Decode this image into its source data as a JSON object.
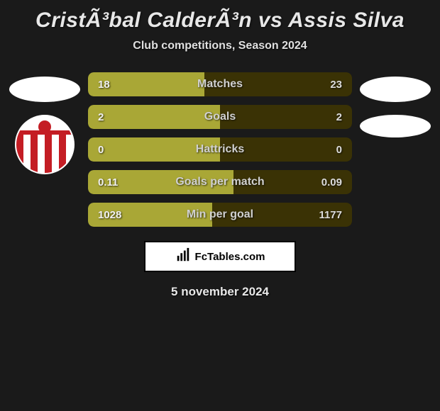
{
  "background_color": "#1a1a1a",
  "title": "CristÃ³bal CalderÃ³n vs Assis Silva",
  "title_color": "#e8e8e8",
  "title_fontsize": 30,
  "subtitle": "Club competitions, Season 2024",
  "subtitle_color": "#e0e0e0",
  "stats": {
    "left_bar_color": "#a9a736",
    "right_bar_color": "#3a3205",
    "rows": [
      {
        "label": "Matches",
        "left_value": "18",
        "right_value": "23",
        "left_pct": 44,
        "right_pct": 56
      },
      {
        "label": "Goals",
        "left_value": "2",
        "right_value": "2",
        "left_pct": 50,
        "right_pct": 50
      },
      {
        "label": "Hattricks",
        "left_value": "0",
        "right_value": "0",
        "left_pct": 50,
        "right_pct": 50
      },
      {
        "label": "Goals per match",
        "left_value": "0.11",
        "right_value": "0.09",
        "left_pct": 55,
        "right_pct": 45
      },
      {
        "label": "Min per goal",
        "left_value": "1028",
        "right_value": "1177",
        "left_pct": 47,
        "right_pct": 53
      }
    ]
  },
  "left_player": {
    "has_photo_placeholder": true,
    "club_logo": {
      "type": "striped-shield",
      "stripe_color": "#c41d24",
      "bg_color": "#ffffff"
    }
  },
  "right_player": {
    "has_photo_placeholder": true,
    "secondary_placeholder": true
  },
  "attribution": "FcTables.com",
  "date": "5 november 2024"
}
